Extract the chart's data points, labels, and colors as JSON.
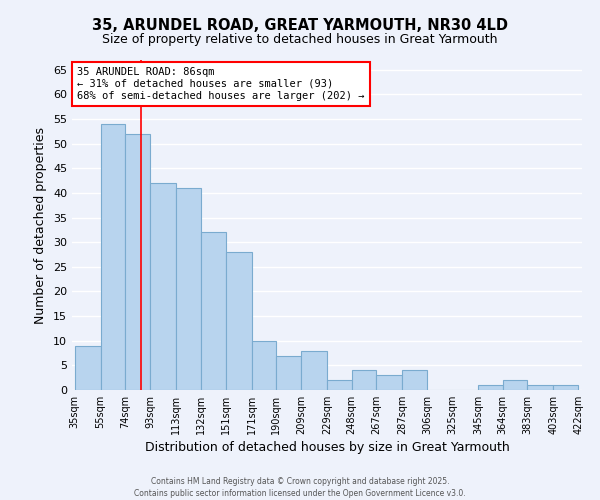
{
  "title": "35, ARUNDEL ROAD, GREAT YARMOUTH, NR30 4LD",
  "subtitle": "Size of property relative to detached houses in Great Yarmouth",
  "xlabel": "Distribution of detached houses by size in Great Yarmouth",
  "ylabel": "Number of detached properties",
  "bar_left_edges": [
    35,
    55,
    74,
    93,
    113,
    132,
    151,
    171,
    190,
    209,
    229,
    248,
    267,
    287,
    306,
    325,
    345,
    364,
    383,
    403
  ],
  "bar_widths": [
    20,
    19,
    19,
    20,
    19,
    19,
    20,
    19,
    19,
    20,
    19,
    19,
    20,
    19,
    19,
    20,
    19,
    19,
    20,
    19
  ],
  "bar_heights": [
    9,
    54,
    52,
    42,
    41,
    32,
    28,
    10,
    7,
    8,
    2,
    4,
    3,
    4,
    0,
    0,
    1,
    2,
    1,
    1
  ],
  "bar_color": "#b8d4ee",
  "bar_edgecolor": "#7aabcf",
  "x_tick_labels": [
    "35sqm",
    "55sqm",
    "74sqm",
    "93sqm",
    "113sqm",
    "132sqm",
    "151sqm",
    "171sqm",
    "190sqm",
    "209sqm",
    "229sqm",
    "248sqm",
    "267sqm",
    "287sqm",
    "306sqm",
    "325sqm",
    "345sqm",
    "364sqm",
    "383sqm",
    "403sqm",
    "422sqm"
  ],
  "x_tick_positions": [
    35,
    55,
    74,
    93,
    113,
    132,
    151,
    171,
    190,
    209,
    229,
    248,
    267,
    287,
    306,
    325,
    345,
    364,
    383,
    403,
    422
  ],
  "ylim": [
    0,
    67
  ],
  "yticks": [
    0,
    5,
    10,
    15,
    20,
    25,
    30,
    35,
    40,
    45,
    50,
    55,
    60,
    65
  ],
  "marker_x": 86,
  "annotation_line1": "35 ARUNDEL ROAD: 86sqm",
  "annotation_line2": "← 31% of detached houses are smaller (93)",
  "annotation_line3": "68% of semi-detached houses are larger (202) →",
  "bg_color": "#eef2fb",
  "grid_color": "#ffffff",
  "footer1": "Contains HM Land Registry data © Crown copyright and database right 2025.",
  "footer2": "Contains public sector information licensed under the Open Government Licence v3.0."
}
